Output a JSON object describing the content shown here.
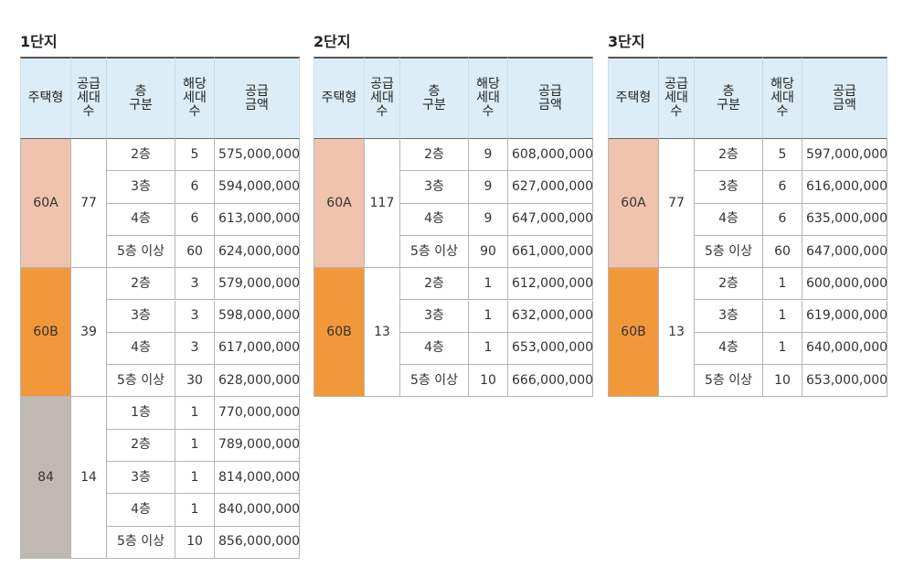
{
  "tables": [
    {
      "title": "1단지",
      "header": [
        [
          "주택형"
        ],
        [
          "공급",
          "세대",
          "수"
        ],
        [
          "층",
          "구분"
        ],
        [
          "해당",
          "세대",
          "수"
        ],
        [
          "공급",
          "금액"
        ]
      ],
      "groups": [
        {
          "type": "60A",
          "units": "77",
          "rows": [
            [
              "2층",
              "5",
              "575,000,000"
            ],
            [
              "3층",
              "6",
              "594,000,000"
            ],
            [
              "4층",
              "6",
              "613,000,000"
            ],
            [
              "5층 이상",
              "60",
              "624,000,000"
            ]
          ]
        },
        {
          "type": "60B",
          "units": "39",
          "rows": [
            [
              "2층",
              "3",
              "579,000,000"
            ],
            [
              "3층",
              "3",
              "598,000,000"
            ],
            [
              "4층",
              "3",
              "617,000,000"
            ],
            [
              "5층 이상",
              "30",
              "628,000,000"
            ]
          ]
        },
        {
          "type": "84",
          "units": "14",
          "rows": [
            [
              "1층",
              "1",
              "770,000,000"
            ],
            [
              "2층",
              "1",
              "789,000,000"
            ],
            [
              "3층",
              "1",
              "814,000,000"
            ],
            [
              "4층",
              "1",
              "840,000,000"
            ],
            [
              "5층 이상",
              "10",
              "856,000,000"
            ]
          ]
        }
      ]
    },
    {
      "title": "2단지",
      "header": [
        [
          "주택형"
        ],
        [
          "공급",
          "세대",
          "수"
        ],
        [
          "층",
          "구분"
        ],
        [
          "해당",
          "세대",
          "수"
        ],
        [
          "공급",
          "금액"
        ]
      ],
      "groups": [
        {
          "type": "60A",
          "units": "117",
          "rows": [
            [
              "2층",
              "9",
              "608,000,000"
            ],
            [
              "3층",
              "9",
              "627,000,000"
            ],
            [
              "4층",
              "9",
              "647,000,000"
            ],
            [
              "5층 이상",
              "90",
              "661,000,000"
            ]
          ]
        },
        {
          "type": "60B",
          "units": "13",
          "rows": [
            [
              "2층",
              "1",
              "612,000,000"
            ],
            [
              "3층",
              "1",
              "632,000,000"
            ],
            [
              "4층",
              "1",
              "653,000,000"
            ],
            [
              "5층 이상",
              "10",
              "666,000,000"
            ]
          ]
        }
      ]
    },
    {
      "title": "3단지",
      "header": [
        [
          "주택형"
        ],
        [
          "공급",
          "세대",
          "수"
        ],
        [
          "층",
          "구분"
        ],
        [
          "해당",
          "세대",
          "수"
        ],
        [
          "공급",
          "금액"
        ]
      ],
      "groups": [
        {
          "type": "60A",
          "units": "77",
          "rows": [
            [
              "2층",
              "5",
              "597,000,000"
            ],
            [
              "3층",
              "6",
              "616,000,000"
            ],
            [
              "4층",
              "6",
              "635,000,000"
            ],
            [
              "5층 이상",
              "60",
              "647,000,000"
            ]
          ]
        },
        {
          "type": "60B",
          "units": "13",
          "rows": [
            [
              "2층",
              "1",
              "600,000,000"
            ],
            [
              "3층",
              "1",
              "619,000,000"
            ],
            [
              "4층",
              "1",
              "640,000,000"
            ],
            [
              "5층 이상",
              "10",
              "653,000,000"
            ]
          ]
        }
      ]
    }
  ]
}
